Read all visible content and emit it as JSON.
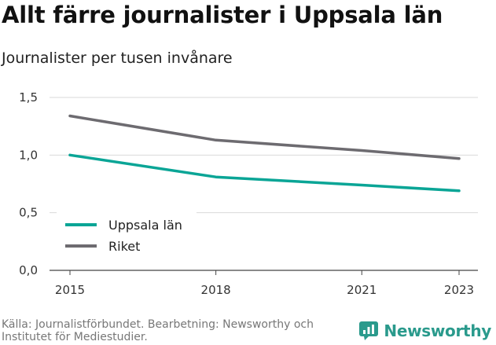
{
  "title": "Allt färre journalister i Uppsala län",
  "subtitle": "Journalister per tusen invånare",
  "source": "Källa: Journalistförbundet. Bearbetning: Newsworthy och Institutet för Mediestudier.",
  "brand": "Newsworthy",
  "colors": {
    "uppsala": "#0aa596",
    "riket": "#6d6b70",
    "grid": "#d9d9d9",
    "brand": "#2a9a8c"
  },
  "chart_data": {
    "type": "line",
    "title": "Allt färre journalister i Uppsala län",
    "ylabel": "Journalister per tusen invånare",
    "xlabel": "",
    "x": [
      2015,
      2018,
      2021,
      2023
    ],
    "x_tick_labels": [
      "2015",
      "2018",
      "2021",
      "2023"
    ],
    "y_ticks": [
      0,
      0.5,
      1.0,
      1.5
    ],
    "y_tick_labels": [
      "0,0",
      "0,5",
      "1,0",
      "1,5"
    ],
    "ylim": [
      0,
      1.5
    ],
    "grid": true,
    "legend_position": "bottom-left",
    "series": [
      {
        "name": "Uppsala län",
        "color": "#0aa596",
        "values": [
          1.0,
          0.81,
          0.74,
          0.69
        ]
      },
      {
        "name": "Riket",
        "color": "#6d6b70",
        "values": [
          1.34,
          1.13,
          1.04,
          0.97
        ]
      }
    ]
  }
}
